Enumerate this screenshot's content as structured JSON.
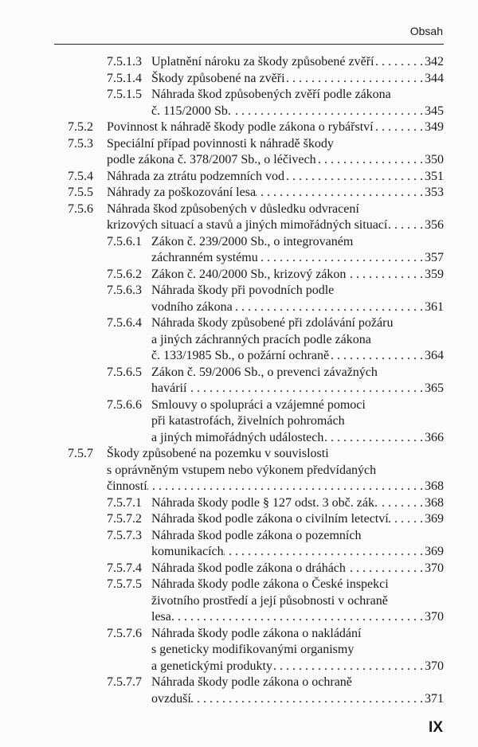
{
  "header": {
    "title": "Obsah"
  },
  "folio": "IX",
  "entries": [
    {
      "num": "7.5.1.3",
      "level": 4,
      "lines": [
        "Uplatnění nároku za škody způsobené zvěří"
      ],
      "page": "342"
    },
    {
      "num": "7.5.1.4",
      "level": 4,
      "lines": [
        "Škody způsobené na zvěři"
      ],
      "page": "344"
    },
    {
      "num": "7.5.1.5",
      "level": 4,
      "lines": [
        "Náhrada škod způsobených zvěří podle zákona",
        "č. 115/2000 Sb."
      ],
      "page": "345"
    },
    {
      "num": "7.5.2",
      "level": 3,
      "lines": [
        "Povinnost k náhradě škody podle zákona o rybářství"
      ],
      "page": "349"
    },
    {
      "num": "7.5.3",
      "level": 3,
      "lines": [
        "Speciální případ povinnosti k náhradě škody",
        "podle zákona č. 378/2007 Sb., o léčivech"
      ],
      "page": "350"
    },
    {
      "num": "7.5.4",
      "level": 3,
      "lines": [
        "Náhrada za ztrátu podzemních vod"
      ],
      "page": "351"
    },
    {
      "num": "7.5.5",
      "level": 3,
      "lines": [
        "Náhrady za poškozování lesa"
      ],
      "page": "353"
    },
    {
      "num": "7.5.6",
      "level": 3,
      "lines": [
        "Náhrada škod způsobených v důsledku odvracení",
        "krizových situací a stavů a jiných mimořádných situací"
      ],
      "page": "356"
    },
    {
      "num": "7.5.6.1",
      "level": 4,
      "lines": [
        "Zákon č. 239/2000 Sb., o integrovaném",
        "záchranném systému"
      ],
      "page": "357"
    },
    {
      "num": "7.5.6.2",
      "level": 4,
      "lines": [
        "Zákon č. 240/2000 Sb., krizový zákon"
      ],
      "page": "359"
    },
    {
      "num": "7.5.6.3",
      "level": 4,
      "lines": [
        "Náhrada škody při povodních podle",
        "vodního zákona"
      ],
      "page": "361"
    },
    {
      "num": "7.5.6.4",
      "level": 4,
      "lines": [
        "Náhrada škody způsobené při zdolávání požáru",
        "a jiných záchranných pracích podle zákona",
        "č. 133/1985 Sb., o požární ochraně"
      ],
      "page": "364"
    },
    {
      "num": "7.5.6.5",
      "level": 4,
      "lines": [
        "Zákon č. 59/2006 Sb., o prevenci závažných",
        "havárií"
      ],
      "page": "365"
    },
    {
      "num": "7.5.6.6",
      "level": 4,
      "lines": [
        "Smlouvy o spolupráci a vzájemné pomoci",
        "při katastrofách, živelních pohromách",
        "a jiných mimořádných událostech"
      ],
      "page": "366"
    },
    {
      "num": "7.5.7",
      "level": 3,
      "lines": [
        "Škody způsobené na pozemku v souvislosti",
        "s oprávněným vstupem nebo výkonem předvídaných",
        "činností"
      ],
      "page": "368"
    },
    {
      "num": "7.5.7.1",
      "level": 4,
      "lines": [
        "Náhrada škody podle § 127 odst. 3 obč. zák."
      ],
      "page": "368"
    },
    {
      "num": "7.5.7.2",
      "level": 4,
      "lines": [
        "Náhrada škod podle zákona o civilním letectví"
      ],
      "page": "369"
    },
    {
      "num": "7.5.7.3",
      "level": 4,
      "lines": [
        "Náhrada škod podle zákona o pozemních",
        "komunikacích"
      ],
      "page": "369"
    },
    {
      "num": "7.5.7.4",
      "level": 4,
      "lines": [
        "Náhrada škod podle zákona o dráhách"
      ],
      "page": "370"
    },
    {
      "num": "7.5.7.5",
      "level": 4,
      "lines": [
        "Náhrada škody podle zákona o České inspekci",
        "životního prostředí a její působnosti v ochraně",
        "lesa"
      ],
      "page": "370"
    },
    {
      "num": "7.5.7.6",
      "level": 4,
      "lines": [
        "Náhrada škody podle zákona o nakládání",
        "s geneticky modifikovanými organismy",
        "a genetickými produkty"
      ],
      "page": "370"
    },
    {
      "num": "7.5.7.7",
      "level": 4,
      "lines": [
        "Náhrada škody podle zákona o ochraně",
        "ovzduší"
      ],
      "page": "371"
    }
  ]
}
